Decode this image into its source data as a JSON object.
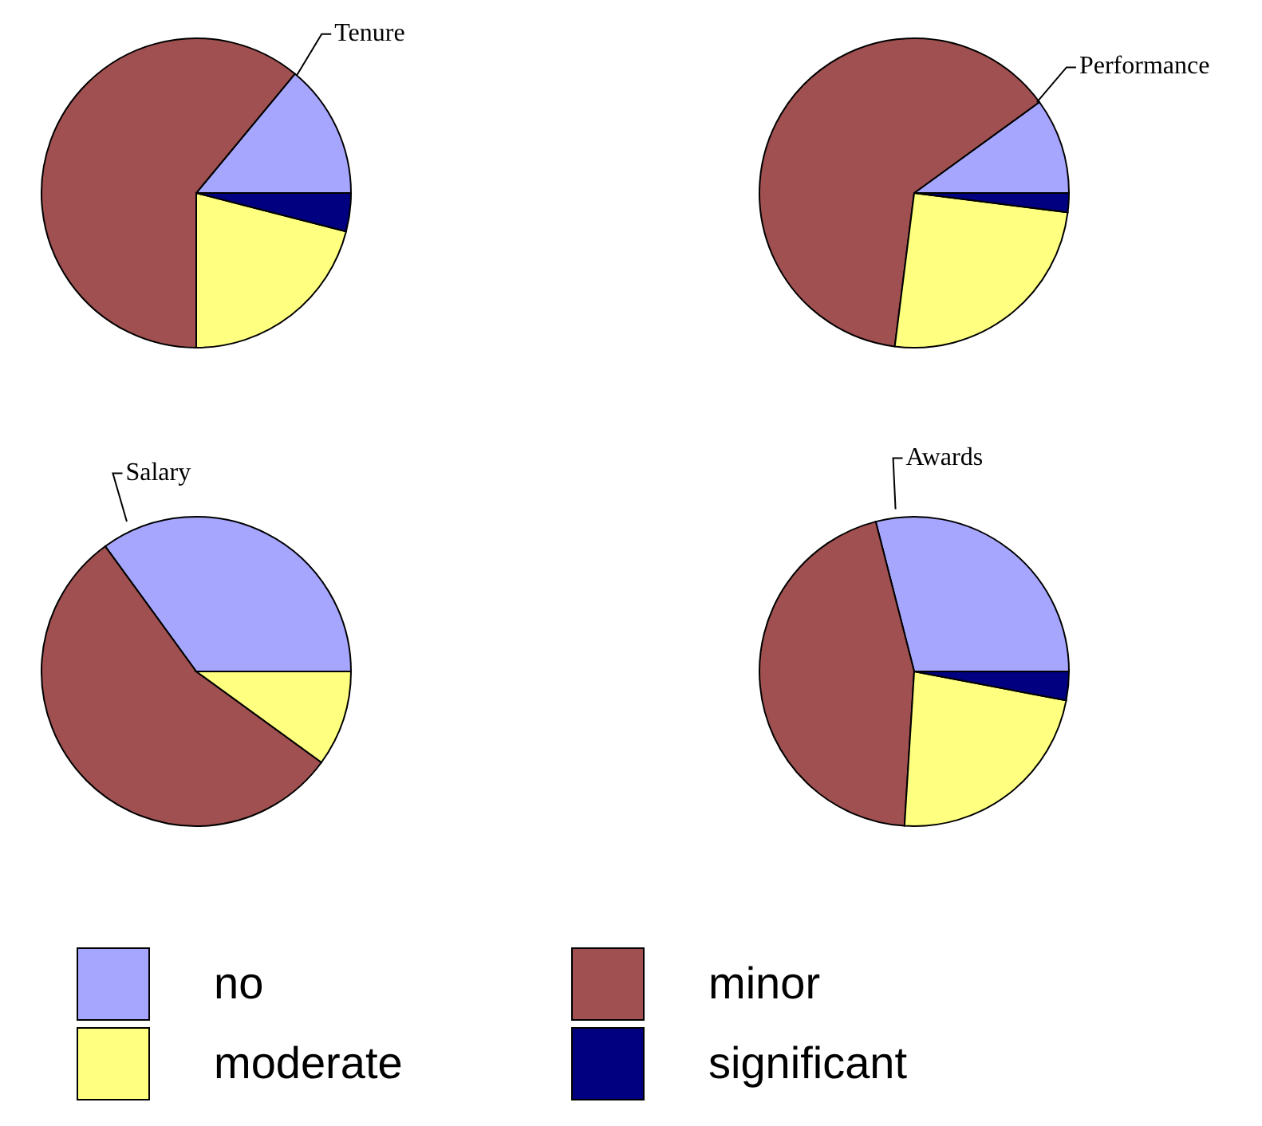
{
  "chart_data": [
    {
      "type": "pie",
      "title": "Tenure",
      "categories": [
        "no",
        "minor",
        "moderate",
        "significant"
      ],
      "values": [
        14,
        61,
        21,
        4
      ],
      "colors": [
        "#a6a6ff",
        "#a05050",
        "#ffff80",
        "#000080"
      ],
      "legend": "bottom"
    },
    {
      "type": "pie",
      "title": "Performance",
      "categories": [
        null,
        null,
        null,
        null
      ],
      "values": [
        10,
        63,
        25,
        2
      ],
      "colors": [
        "#a6a6ff",
        "#a05050",
        "#ffff80",
        "#000080"
      ]
    },
    {
      "type": "pie",
      "title": "Salary",
      "categories": [
        null,
        null,
        null,
        null
      ],
      "values": [
        35,
        55,
        10,
        0
      ],
      "colors": [
        "#a6a6ff",
        "#a05050",
        "#ffff80",
        "#000080"
      ]
    },
    {
      "type": "pie",
      "title": "Awards",
      "categories": [
        null,
        null,
        null,
        null
      ],
      "values": [
        29,
        45,
        23,
        3
      ],
      "colors": [
        "#a6a6ff",
        "#a05050",
        "#ffff80",
        "#000080"
      ]
    }
  ]
}
